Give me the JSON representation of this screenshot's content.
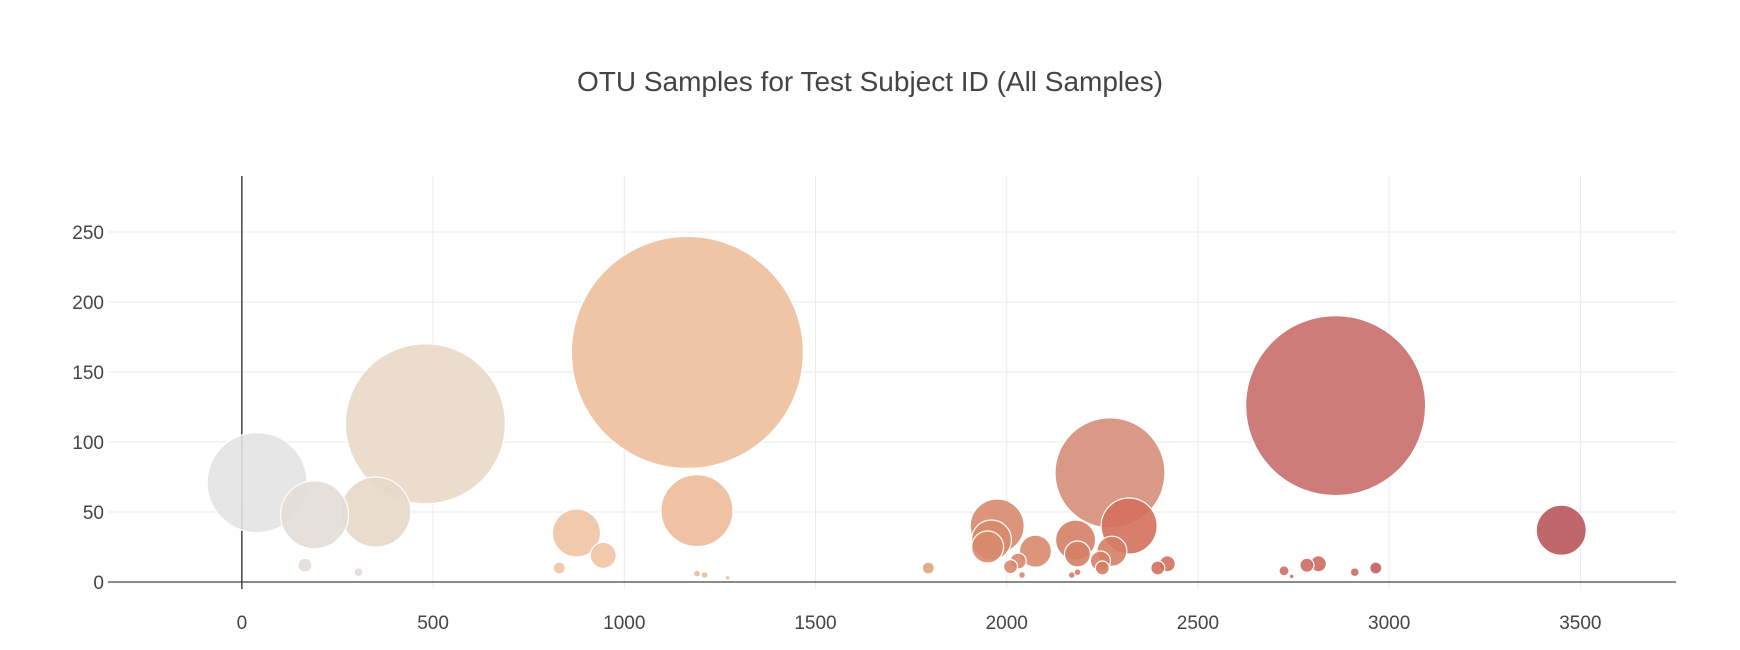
{
  "chart_data": {
    "type": "scatter",
    "title": "OTU Samples for Test Subject ID (All Samples)",
    "xlabel": "",
    "ylabel": "",
    "xlim": [
      -350,
      3750
    ],
    "ylim": [
      -5,
      290
    ],
    "xticks": [
      0,
      500,
      1000,
      1500,
      2000,
      2500,
      3000,
      3500
    ],
    "yticks": [
      0,
      50,
      100,
      150,
      200,
      250
    ],
    "grid": true,
    "legend": "none",
    "points": [
      {
        "x": 40,
        "y": 71,
        "r": 50,
        "color": "#e3e3e3"
      },
      {
        "x": 190,
        "y": 48,
        "r": 34,
        "color": "#e2ddd8"
      },
      {
        "x": 165,
        "y": 12,
        "r": 7,
        "color": "#e2ddd8"
      },
      {
        "x": 305,
        "y": 7,
        "r": 4,
        "color": "#e2ddd8"
      },
      {
        "x": 350,
        "y": 50,
        "r": 35,
        "color": "#e6d8c8"
      },
      {
        "x": 480,
        "y": 113,
        "r": 80,
        "color": "#ead8c6"
      },
      {
        "x": 830,
        "y": 10,
        "r": 6,
        "color": "#efc3a3"
      },
      {
        "x": 875,
        "y": 35,
        "r": 24,
        "color": "#efc3a3"
      },
      {
        "x": 945,
        "y": 19,
        "r": 13,
        "color": "#efc3a3"
      },
      {
        "x": 1165,
        "y": 164,
        "r": 116,
        "color": "#edbf9c"
      },
      {
        "x": 1190,
        "y": 51,
        "r": 36,
        "color": "#ecbb98"
      },
      {
        "x": 1190,
        "y": 6,
        "r": 3,
        "color": "#ecbb98"
      },
      {
        "x": 1210,
        "y": 5,
        "r": 3,
        "color": "#ecbb98"
      },
      {
        "x": 1270,
        "y": 3,
        "r": 2,
        "color": "#ecbb98"
      },
      {
        "x": 1795,
        "y": 10,
        "r": 6,
        "color": "#e3a47e"
      },
      {
        "x": 1975,
        "y": 40,
        "r": 27,
        "color": "#d88a6c"
      },
      {
        "x": 1960,
        "y": 30,
        "r": 20,
        "color": "#d88a6c"
      },
      {
        "x": 1950,
        "y": 25,
        "r": 16,
        "color": "#d88a6c"
      },
      {
        "x": 2010,
        "y": 11,
        "r": 7,
        "color": "#d88a6c"
      },
      {
        "x": 2030,
        "y": 15,
        "r": 8,
        "color": "#d88a6c"
      },
      {
        "x": 2040,
        "y": 5,
        "r": 3,
        "color": "#d88a6c"
      },
      {
        "x": 2075,
        "y": 22,
        "r": 16,
        "color": "#d88a6c"
      },
      {
        "x": 2180,
        "y": 30,
        "r": 20,
        "color": "#d47f66"
      },
      {
        "x": 2185,
        "y": 20,
        "r": 13,
        "color": "#d47f66"
      },
      {
        "x": 2270,
        "y": 78,
        "r": 55,
        "color": "#d68e7a"
      },
      {
        "x": 2320,
        "y": 40,
        "r": 28,
        "color": "#d4705c"
      },
      {
        "x": 2275,
        "y": 22,
        "r": 15,
        "color": "#d47f66"
      },
      {
        "x": 2245,
        "y": 15,
        "r": 10,
        "color": "#d47f66"
      },
      {
        "x": 2250,
        "y": 10,
        "r": 7,
        "color": "#d47f66"
      },
      {
        "x": 2170,
        "y": 5,
        "r": 3,
        "color": "#d47f66"
      },
      {
        "x": 2185,
        "y": 7,
        "r": 3,
        "color": "#d47f66"
      },
      {
        "x": 2395,
        "y": 10,
        "r": 7,
        "color": "#d4705c"
      },
      {
        "x": 2420,
        "y": 13,
        "r": 8,
        "color": "#d4705c"
      },
      {
        "x": 2725,
        "y": 8,
        "r": 5,
        "color": "#cd6a62"
      },
      {
        "x": 2745,
        "y": 4,
        "r": 2,
        "color": "#cd6a62"
      },
      {
        "x": 2785,
        "y": 12,
        "r": 7,
        "color": "#cd6a62"
      },
      {
        "x": 2815,
        "y": 13,
        "r": 8,
        "color": "#cd6a62"
      },
      {
        "x": 2860,
        "y": 126,
        "r": 90,
        "color": "#c86e6a"
      },
      {
        "x": 2910,
        "y": 7,
        "r": 4,
        "color": "#cd6a62"
      },
      {
        "x": 2965,
        "y": 10,
        "r": 6,
        "color": "#c65e5c"
      },
      {
        "x": 3450,
        "y": 37,
        "r": 25,
        "color": "#b9575b"
      }
    ]
  }
}
